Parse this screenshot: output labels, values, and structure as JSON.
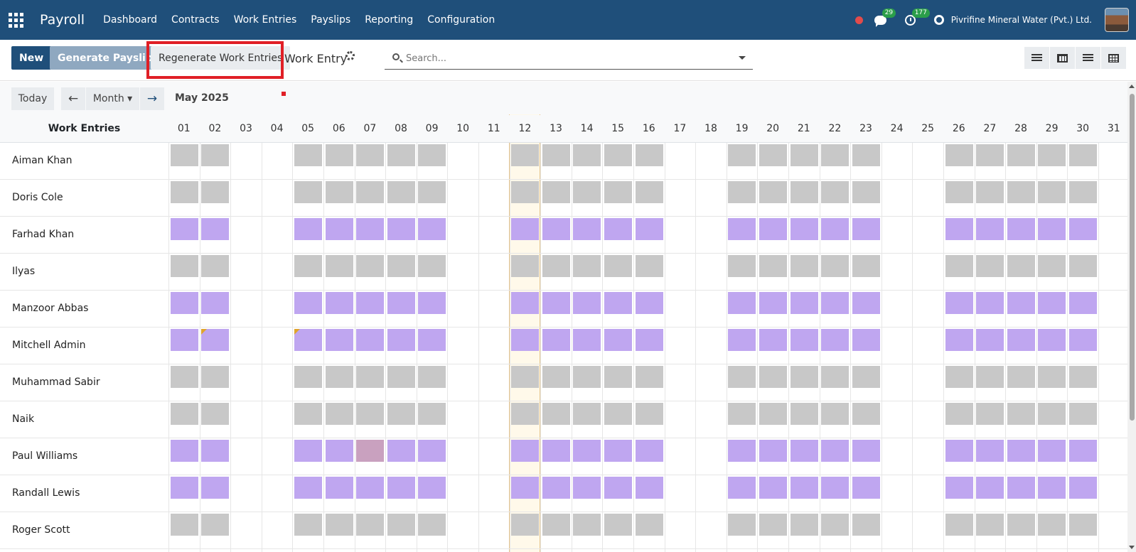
{
  "navbar": {
    "brand": "Payroll",
    "menu": [
      "Dashboard",
      "Contracts",
      "Work Entries",
      "Payslips",
      "Reporting",
      "Configuration"
    ],
    "messages_count": "29",
    "activities_count": "177",
    "company": "Pivrifine Mineral Water (Pvt.) Ltd."
  },
  "toolbar": {
    "new_label": "New",
    "generate_label": "Generate Payslips",
    "regenerate_label": "Regenerate Work Entries",
    "title": "Work Entry"
  },
  "search": {
    "placeholder": "Search..."
  },
  "gantt": {
    "today_label": "Today",
    "prev_label": "←",
    "next_label": "→",
    "scale_label": "Month ▾",
    "range_label": "May 2025",
    "header_title": "Work Entries",
    "days": [
      "01",
      "02",
      "03",
      "04",
      "05",
      "06",
      "07",
      "08",
      "09",
      "10",
      "11",
      "12",
      "13",
      "14",
      "15",
      "16",
      "17",
      "18",
      "19",
      "20",
      "21",
      "22",
      "23",
      "24",
      "25",
      "26",
      "27",
      "28",
      "29",
      "30",
      "31"
    ],
    "today_index": 11,
    "working_days": [
      1,
      2,
      5,
      6,
      7,
      8,
      9,
      12,
      13,
      14,
      15,
      16,
      19,
      20,
      21,
      22,
      23,
      26,
      27,
      28,
      29,
      30
    ],
    "colors": {
      "gray": "#c8c8c8",
      "purple": "#bfa6f0",
      "mauve": "#c9a1bf",
      "flag": "#e0a42c"
    },
    "rows": [
      {
        "name": "Aiman Khan",
        "color": "gray"
      },
      {
        "name": "Doris Cole",
        "color": "gray"
      },
      {
        "name": "Farhad Khan",
        "color": "purple"
      },
      {
        "name": "Ilyas",
        "color": "gray"
      },
      {
        "name": "Manzoor Abbas",
        "color": "purple"
      },
      {
        "name": "Mitchell Admin",
        "color": "purple",
        "flag_days": [
          2,
          5
        ]
      },
      {
        "name": "Muhammad Sabir",
        "color": "gray"
      },
      {
        "name": "Naik",
        "color": "gray"
      },
      {
        "name": "Paul Williams",
        "color": "purple",
        "special": {
          "7": "mauve"
        }
      },
      {
        "name": "Randall Lewis",
        "color": "purple"
      },
      {
        "name": "Roger Scott",
        "color": "gray"
      }
    ]
  }
}
